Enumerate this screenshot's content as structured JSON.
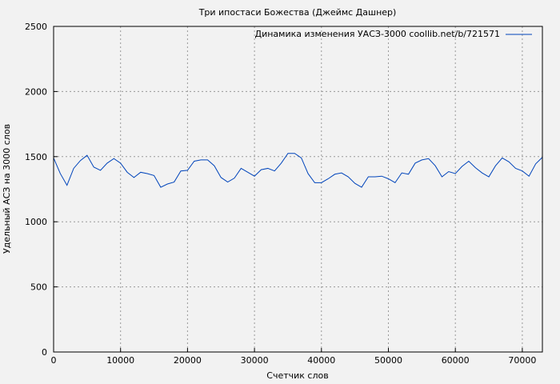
{
  "chart_data": {
    "type": "line",
    "title": "Три ипостаси Божества (Джеймс Дашнер)",
    "xlabel": "Счетчик слов",
    "ylabel": "Удельный АСЗ на 3000 слов",
    "xlim": [
      0,
      73000
    ],
    "ylim": [
      0,
      2500
    ],
    "xticks": [
      0,
      10000,
      20000,
      30000,
      40000,
      50000,
      60000,
      70000
    ],
    "yticks": [
      0,
      500,
      1000,
      1500,
      2000,
      2500
    ],
    "grid": true,
    "legend_position": "top-right",
    "series": [
      {
        "name": "Динамика изменения УАСЗ-3000 coollib.net/b/721571",
        "color": "#0044bb",
        "x": [
          0,
          1000,
          2000,
          3000,
          4000,
          5000,
          6000,
          7000,
          8000,
          9000,
          10000,
          11000,
          12000,
          13000,
          14000,
          15000,
          16000,
          17000,
          18000,
          19000,
          20000,
          21000,
          22000,
          23000,
          24000,
          25000,
          26000,
          27000,
          28000,
          29000,
          30000,
          31000,
          32000,
          33000,
          34000,
          35000,
          36000,
          37000,
          38000,
          39000,
          40000,
          41000,
          42000,
          43000,
          44000,
          45000,
          46000,
          47000,
          48000,
          49000,
          50000,
          51000,
          52000,
          53000,
          54000,
          55000,
          56000,
          57000,
          58000,
          59000,
          60000,
          61000,
          62000,
          63000,
          64000,
          65000,
          66000,
          67000,
          68000,
          69000,
          70000,
          71000,
          72000,
          73000
        ],
        "y": [
          1490,
          1370,
          1280,
          1410,
          1470,
          1510,
          1420,
          1395,
          1450,
          1485,
          1450,
          1380,
          1340,
          1380,
          1370,
          1355,
          1265,
          1290,
          1305,
          1390,
          1395,
          1465,
          1475,
          1475,
          1430,
          1340,
          1305,
          1335,
          1410,
          1380,
          1350,
          1400,
          1410,
          1390,
          1450,
          1525,
          1525,
          1490,
          1370,
          1300,
          1300,
          1330,
          1365,
          1375,
          1345,
          1295,
          1265,
          1345,
          1345,
          1350,
          1330,
          1300,
          1375,
          1365,
          1450,
          1475,
          1485,
          1430,
          1345,
          1385,
          1370,
          1425,
          1465,
          1415,
          1375,
          1345,
          1430,
          1490,
          1460,
          1410,
          1390,
          1350,
          1445,
          1495
        ]
      }
    ]
  }
}
